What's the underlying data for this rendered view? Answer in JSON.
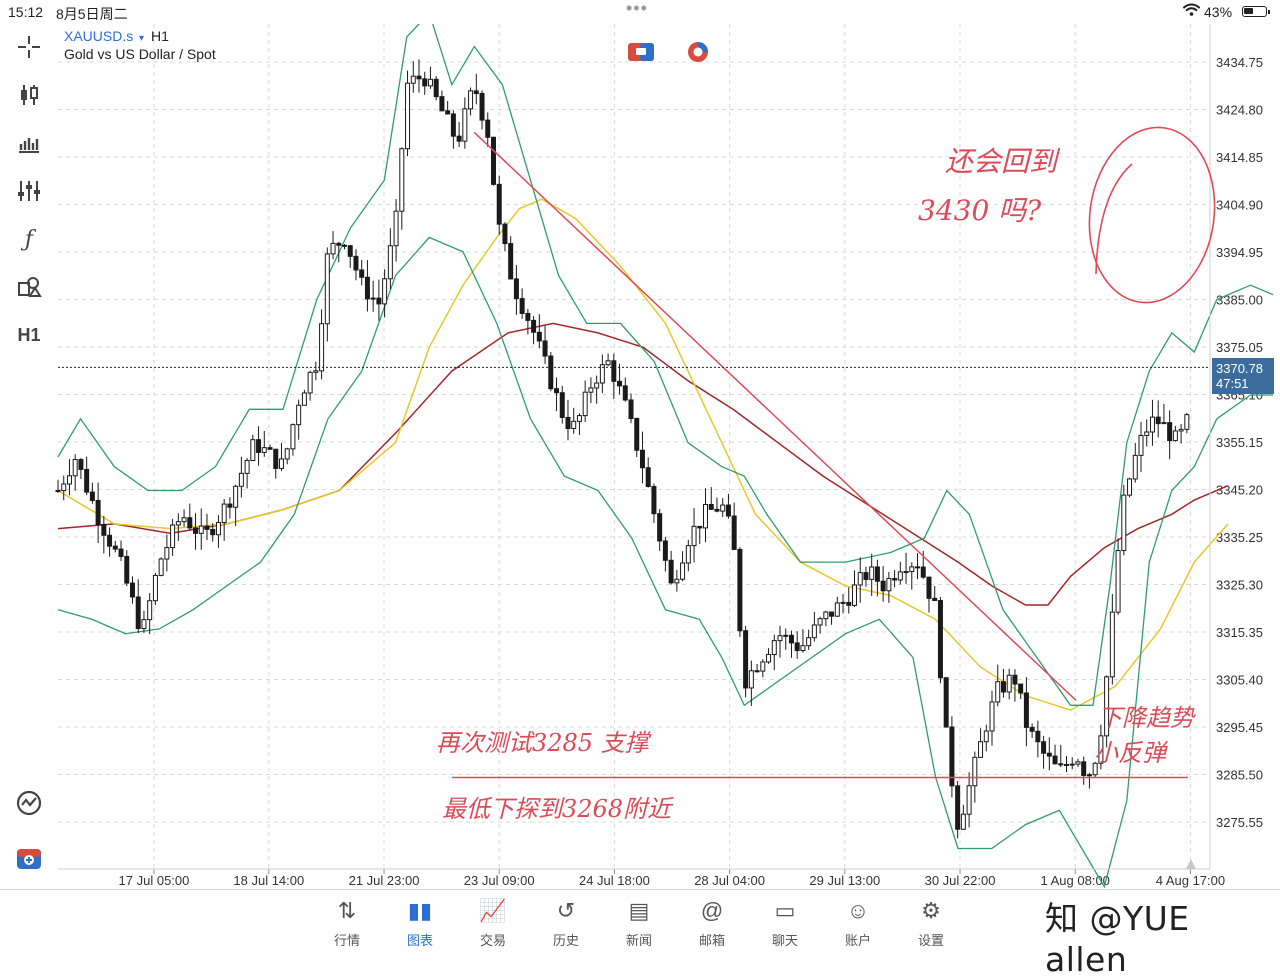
{
  "status": {
    "time": "15:12",
    "date": "8月5日周二",
    "battery": "43%",
    "wifi_icon": "wifi-icon",
    "battery_level": 0.43
  },
  "chart": {
    "symbol": "XAUUSD.s",
    "dropdown": "▾",
    "timeframe": "H1",
    "description": "Gold vs US Dollar / Spot",
    "current_price": "3370.78",
    "countdown": "47:51",
    "under_label": "3365.10",
    "toolbar_timeframe": "H1"
  },
  "annotations": {
    "top_right": [
      "还会回到",
      "3430 吗?"
    ],
    "bottom_left": [
      "再次测试3285 支撑",
      "最低下探到3268附近"
    ],
    "bottom_right": [
      "下降趋势",
      "小反弹"
    ],
    "watermark": "知 @YUE allen"
  },
  "tabs": [
    {
      "label": "行情",
      "icon": "arrows-updown-icon",
      "glyph": "⇅"
    },
    {
      "label": "图表",
      "icon": "candles-icon",
      "glyph": "▮▮"
    },
    {
      "label": "交易",
      "icon": "trend-chart-icon",
      "glyph": "📈"
    },
    {
      "label": "历史",
      "icon": "history-icon",
      "glyph": "↺"
    },
    {
      "label": "新闻",
      "icon": "news-icon",
      "glyph": "▤"
    },
    {
      "label": "邮箱",
      "icon": "at-icon",
      "glyph": "@"
    },
    {
      "label": "聊天",
      "icon": "chat-icon",
      "glyph": "▭"
    },
    {
      "label": "账户",
      "icon": "account-icon",
      "glyph": "☺"
    },
    {
      "label": "设置",
      "icon": "gear-icon",
      "glyph": "⚙"
    }
  ],
  "active_tab": 1,
  "colors": {
    "bollinger": "#2e9e68",
    "ma_fast": "#e6c92b",
    "ma_slow": "#a3262a",
    "candle": "#1a1a1a",
    "annotation": "#dd4b57",
    "accent": "#2b6fd6",
    "price_tag": "#3b6c9c"
  },
  "chart_data": {
    "type": "candlestick",
    "symbol": "XAUUSD.s",
    "timeframe": "H1",
    "y_ticks": [
      3434.75,
      3424.8,
      3414.85,
      3404.9,
      3394.95,
      3385.0,
      3375.05,
      3365.1,
      3355.15,
      3345.2,
      3335.25,
      3325.3,
      3315.35,
      3305.4,
      3295.45,
      3285.5,
      3275.55
    ],
    "ylim": [
      3260.5,
      3440
    ],
    "x_ticks": [
      "17 Jul 05:00",
      "18 Jul 14:00",
      "21 Jul 23:00",
      "23 Jul 09:00",
      "24 Jul 18:00",
      "28 Jul 04:00",
      "29 Jul 13:00",
      "30 Jul 22:00",
      "1 Aug 08:00",
      "4 Aug 17:00"
    ],
    "x_positions": [
      0.0833,
      0.183,
      0.283,
      0.383,
      0.483,
      0.583,
      0.683,
      0.783,
      0.883,
      0.983
    ],
    "current_price": 3370.78,
    "horizontal_line": 3285.5,
    "price_path": [
      [
        0.0,
        3345
      ],
      [
        0.015,
        3352
      ],
      [
        0.035,
        3340
      ],
      [
        0.055,
        3330
      ],
      [
        0.075,
        3315
      ],
      [
        0.09,
        3330
      ],
      [
        0.11,
        3340
      ],
      [
        0.13,
        3335
      ],
      [
        0.15,
        3342
      ],
      [
        0.175,
        3355
      ],
      [
        0.2,
        3350
      ],
      [
        0.215,
        3365
      ],
      [
        0.23,
        3372
      ],
      [
        0.24,
        3395
      ],
      [
        0.255,
        3398
      ],
      [
        0.27,
        3388
      ],
      [
        0.285,
        3384
      ],
      [
        0.3,
        3400
      ],
      [
        0.31,
        3430
      ],
      [
        0.325,
        3432
      ],
      [
        0.34,
        3425
      ],
      [
        0.355,
        3418
      ],
      [
        0.37,
        3430
      ],
      [
        0.382,
        3420
      ],
      [
        0.392,
        3400
      ],
      [
        0.405,
        3388
      ],
      [
        0.42,
        3380
      ],
      [
        0.435,
        3370
      ],
      [
        0.45,
        3360
      ],
      [
        0.46,
        3358
      ],
      [
        0.475,
        3368
      ],
      [
        0.49,
        3372
      ],
      [
        0.505,
        3362
      ],
      [
        0.52,
        3350
      ],
      [
        0.535,
        3335
      ],
      [
        0.545,
        3325
      ],
      [
        0.56,
        3335
      ],
      [
        0.575,
        3340
      ],
      [
        0.59,
        3342
      ],
      [
        0.6,
        3335
      ],
      [
        0.61,
        3305
      ],
      [
        0.625,
        3310
      ],
      [
        0.64,
        3315
      ],
      [
        0.66,
        3312
      ],
      [
        0.68,
        3318
      ],
      [
        0.7,
        3322
      ],
      [
        0.72,
        3328
      ],
      [
        0.735,
        3325
      ],
      [
        0.75,
        3330
      ],
      [
        0.765,
        3330
      ],
      [
        0.78,
        3320
      ],
      [
        0.79,
        3292
      ],
      [
        0.8,
        3275
      ],
      [
        0.81,
        3283
      ],
      [
        0.825,
        3296
      ],
      [
        0.835,
        3303
      ],
      [
        0.85,
        3306
      ],
      [
        0.862,
        3295
      ],
      [
        0.875,
        3290
      ],
      [
        0.89,
        3286
      ],
      [
        0.905,
        3290
      ],
      [
        0.915,
        3285
      ],
      [
        0.925,
        3291
      ],
      [
        0.935,
        3312
      ],
      [
        0.945,
        3340
      ],
      [
        0.955,
        3350
      ],
      [
        0.965,
        3357
      ],
      [
        0.975,
        3360
      ],
      [
        0.985,
        3358
      ],
      [
        0.995,
        3355
      ],
      [
        1.005,
        3360
      ],
      [
        1.015,
        3364
      ],
      [
        1.025,
        3380
      ],
      [
        1.032,
        3385
      ],
      [
        1.04,
        3372
      ],
      [
        1.05,
        3375
      ],
      [
        1.06,
        3378
      ],
      [
        1.07,
        3381
      ],
      [
        1.08,
        3375
      ],
      [
        1.09,
        3368
      ]
    ],
    "ma_fast_path": [
      [
        0.0,
        3345
      ],
      [
        0.05,
        3338
      ],
      [
        0.1,
        3337
      ],
      [
        0.15,
        3338
      ],
      [
        0.2,
        3341
      ],
      [
        0.25,
        3345
      ],
      [
        0.3,
        3355
      ],
      [
        0.33,
        3375
      ],
      [
        0.36,
        3388
      ],
      [
        0.39,
        3398
      ],
      [
        0.41,
        3404
      ],
      [
        0.43,
        3406
      ],
      [
        0.46,
        3402
      ],
      [
        0.5,
        3392
      ],
      [
        0.54,
        3380
      ],
      [
        0.58,
        3360
      ],
      [
        0.62,
        3340
      ],
      [
        0.66,
        3330
      ],
      [
        0.7,
        3325
      ],
      [
        0.74,
        3323
      ],
      [
        0.78,
        3318
      ],
      [
        0.82,
        3308
      ],
      [
        0.86,
        3302
      ],
      [
        0.9,
        3299
      ],
      [
        0.94,
        3304
      ],
      [
        0.98,
        3316
      ],
      [
        1.01,
        3330
      ],
      [
        1.04,
        3338
      ]
    ],
    "ma_slow_path": [
      [
        0.0,
        3337
      ],
      [
        0.05,
        3338
      ],
      [
        0.1,
        3336
      ],
      [
        0.15,
        3338
      ],
      [
        0.2,
        3341
      ],
      [
        0.25,
        3345
      ],
      [
        0.3,
        3357
      ],
      [
        0.35,
        3370
      ],
      [
        0.4,
        3378
      ],
      [
        0.44,
        3380
      ],
      [
        0.48,
        3378
      ],
      [
        0.52,
        3375
      ],
      [
        0.56,
        3368
      ],
      [
        0.6,
        3362
      ],
      [
        0.64,
        3355
      ],
      [
        0.68,
        3348
      ],
      [
        0.72,
        3342
      ],
      [
        0.76,
        3336
      ],
      [
        0.8,
        3330
      ],
      [
        0.83,
        3325
      ],
      [
        0.86,
        3321
      ],
      [
        0.88,
        3321
      ],
      [
        0.9,
        3327
      ],
      [
        0.93,
        3333
      ],
      [
        0.96,
        3337
      ],
      [
        0.99,
        3340
      ],
      [
        1.01,
        3343
      ],
      [
        1.04,
        3346
      ]
    ],
    "bollinger_upper_path": [
      [
        0.0,
        3352
      ],
      [
        0.02,
        3360
      ],
      [
        0.05,
        3350
      ],
      [
        0.08,
        3345
      ],
      [
        0.11,
        3345
      ],
      [
        0.14,
        3350
      ],
      [
        0.17,
        3362
      ],
      [
        0.2,
        3362
      ],
      [
        0.23,
        3385
      ],
      [
        0.26,
        3400
      ],
      [
        0.29,
        3410
      ],
      [
        0.31,
        3440
      ],
      [
        0.33,
        3445
      ],
      [
        0.35,
        3430
      ],
      [
        0.37,
        3438
      ],
      [
        0.395,
        3430
      ],
      [
        0.42,
        3410
      ],
      [
        0.445,
        3390
      ],
      [
        0.47,
        3380
      ],
      [
        0.5,
        3380
      ],
      [
        0.53,
        3372
      ],
      [
        0.56,
        3355
      ],
      [
        0.59,
        3350
      ],
      [
        0.61,
        3348
      ],
      [
        0.63,
        3340
      ],
      [
        0.66,
        3330
      ],
      [
        0.7,
        3330
      ],
      [
        0.74,
        3332
      ],
      [
        0.77,
        3335
      ],
      [
        0.79,
        3345
      ],
      [
        0.81,
        3340
      ],
      [
        0.84,
        3320
      ],
      [
        0.87,
        3310
      ],
      [
        0.9,
        3300
      ],
      [
        0.92,
        3300
      ],
      [
        0.935,
        3325
      ],
      [
        0.95,
        3355
      ],
      [
        0.97,
        3370
      ],
      [
        0.99,
        3378
      ],
      [
        1.01,
        3374
      ],
      [
        1.03,
        3385
      ],
      [
        1.06,
        3388
      ],
      [
        1.08,
        3386
      ]
    ],
    "bollinger_lower_path": [
      [
        0.0,
        3320
      ],
      [
        0.03,
        3318
      ],
      [
        0.06,
        3315
      ],
      [
        0.09,
        3316
      ],
      [
        0.12,
        3320
      ],
      [
        0.15,
        3325
      ],
      [
        0.18,
        3330
      ],
      [
        0.21,
        3340
      ],
      [
        0.24,
        3360
      ],
      [
        0.27,
        3370
      ],
      [
        0.3,
        3390
      ],
      [
        0.33,
        3398
      ],
      [
        0.36,
        3395
      ],
      [
        0.39,
        3380
      ],
      [
        0.42,
        3360
      ],
      [
        0.45,
        3348
      ],
      [
        0.48,
        3345
      ],
      [
        0.51,
        3335
      ],
      [
        0.54,
        3320
      ],
      [
        0.57,
        3318
      ],
      [
        0.59,
        3310
      ],
      [
        0.61,
        3300
      ],
      [
        0.64,
        3305
      ],
      [
        0.67,
        3310
      ],
      [
        0.7,
        3315
      ],
      [
        0.73,
        3318
      ],
      [
        0.76,
        3310
      ],
      [
        0.78,
        3285
      ],
      [
        0.8,
        3270
      ],
      [
        0.83,
        3270
      ],
      [
        0.86,
        3275
      ],
      [
        0.89,
        3278
      ],
      [
        0.91,
        3270
      ],
      [
        0.93,
        3262
      ],
      [
        0.95,
        3280
      ],
      [
        0.97,
        3330
      ],
      [
        0.99,
        3345
      ],
      [
        1.01,
        3350
      ],
      [
        1.03,
        3360
      ],
      [
        1.06,
        3365
      ],
      [
        1.08,
        3365
      ]
    ],
    "trendline": [
      [
        0.37,
        3420
      ],
      [
        0.905,
        3301
      ]
    ]
  }
}
